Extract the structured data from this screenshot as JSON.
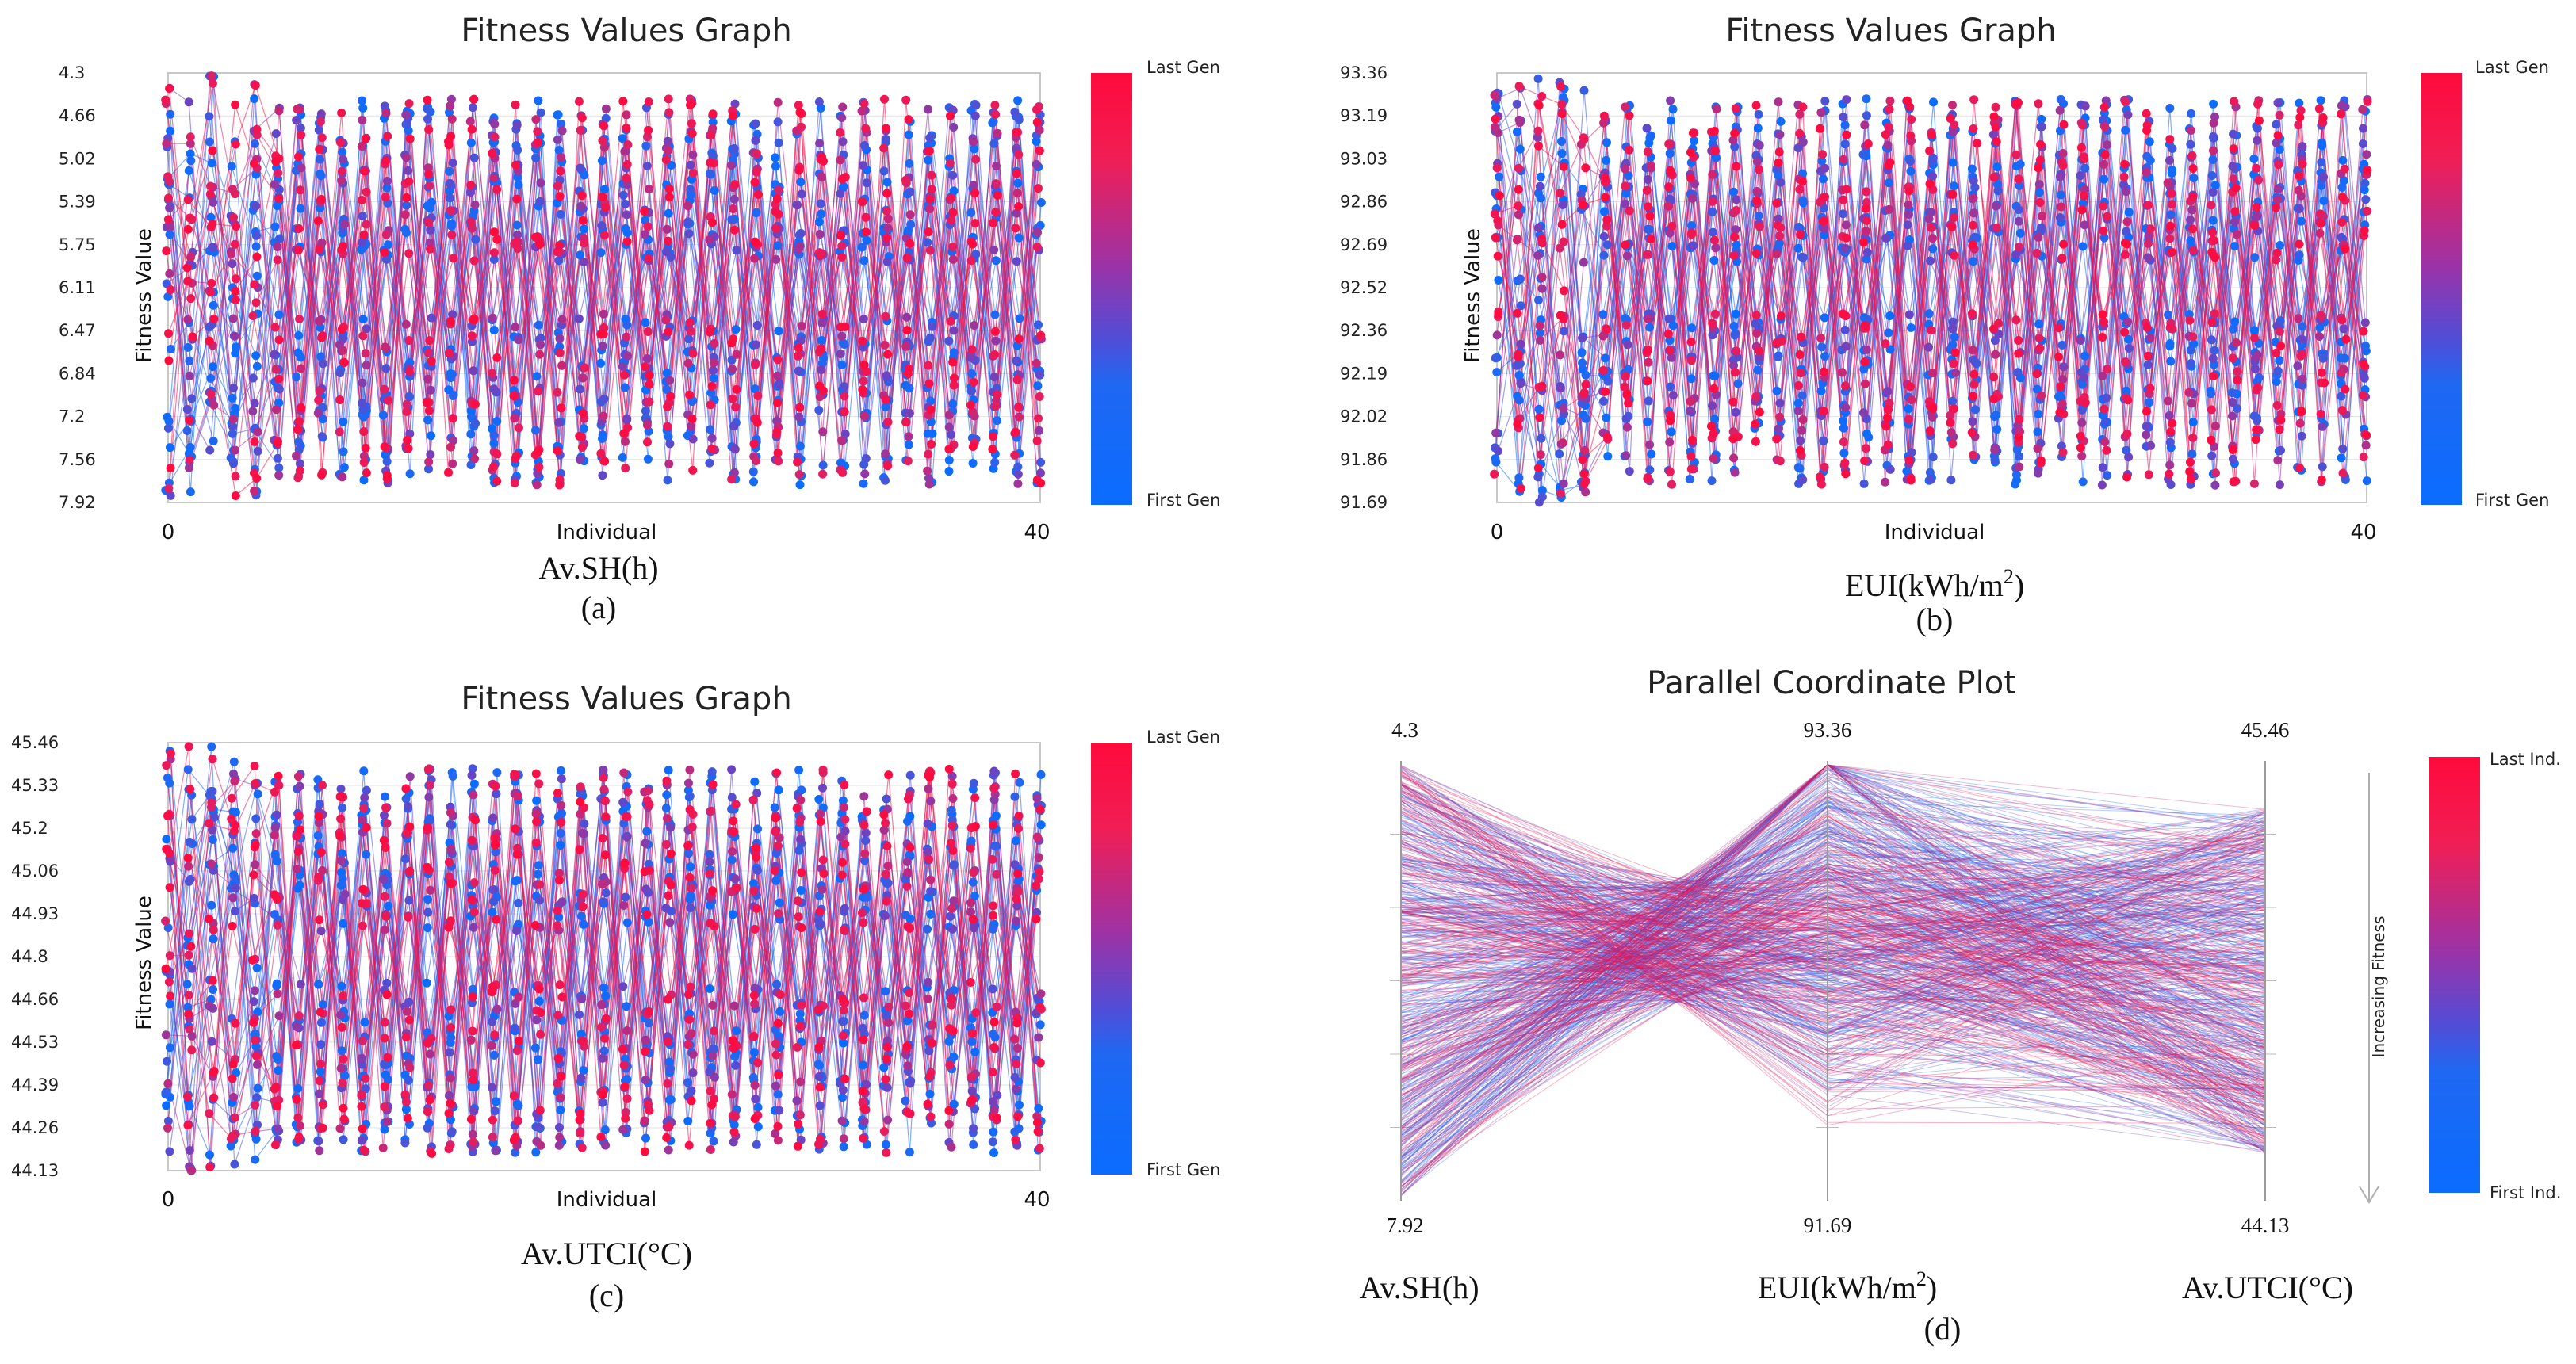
{
  "colors": {
    "first": "#0a6cff",
    "mid": "#7a3cc0",
    "last": "#ff0a3c"
  },
  "chart_data": [
    {
      "id": "a",
      "type": "line",
      "title": "Fitness Values Graph",
      "ylabel": "Fitness Value",
      "xlabel": "Individual",
      "xticks": [
        "0",
        "40"
      ],
      "xlim": [
        0,
        40
      ],
      "yticks": [
        "4.3",
        "4.66",
        "5.02",
        "5.39",
        "5.75",
        "6.11",
        "6.47",
        "6.84",
        "7.2",
        "7.56",
        "7.92"
      ],
      "ylim": [
        7.92,
        4.3
      ],
      "colorbar": {
        "top": "Last Gen",
        "bottom": "First Gen"
      },
      "caption": {
        "metric": "Av.SH(h)",
        "label": "(a)"
      }
    },
    {
      "id": "b",
      "type": "line",
      "title": "Fitness Values Graph",
      "ylabel": "Fitness Value",
      "xlabel": "Individual",
      "xticks": [
        "0",
        "40"
      ],
      "xlim": [
        0,
        40
      ],
      "yticks": [
        "93.36",
        "93.19",
        "93.03",
        "92.86",
        "92.69",
        "92.52",
        "92.36",
        "92.19",
        "92.02",
        "91.86",
        "91.69"
      ],
      "ylim": [
        91.69,
        93.36
      ],
      "colorbar": {
        "top": "Last Gen",
        "bottom": "First Gen"
      },
      "caption": {
        "metric": "EUI(kWh/m",
        "sup": "2",
        "metric_end": ")",
        "label": "(b)"
      }
    },
    {
      "id": "c",
      "type": "line",
      "title": "Fitness Values Graph",
      "ylabel": "Fitness Value",
      "xlabel": "Individual",
      "xticks": [
        "0",
        "40"
      ],
      "xlim": [
        0,
        40
      ],
      "yticks": [
        "45.46",
        "45.33",
        "45.2",
        "45.06",
        "44.93",
        "44.8",
        "44.66",
        "44.53",
        "44.39",
        "44.26",
        "44.13"
      ],
      "ylim": [
        44.13,
        45.46
      ],
      "colorbar": {
        "top": "Last Gen",
        "bottom": "First Gen"
      },
      "caption": {
        "metric": "Av.UTCI(°C)",
        "label": "(c)"
      }
    },
    {
      "id": "d",
      "type": "parallel",
      "title": "Parallel Coordinate Plot",
      "axes": [
        {
          "name": "Av.SH(h)",
          "top": "4.3",
          "bottom": "7.92"
        },
        {
          "name": "EUI(kWh/m",
          "sup": "2",
          "name_end": ")",
          "top": "93.36",
          "bottom": "91.69"
        },
        {
          "name": "Av.UTCI(°C)",
          "top": "45.46",
          "bottom": "44.13"
        }
      ],
      "arrow_label": "Increasing Fitness",
      "colorbar": {
        "top": "Last Ind.",
        "bottom": "First Ind."
      },
      "caption": {
        "label": "(d)"
      }
    }
  ]
}
